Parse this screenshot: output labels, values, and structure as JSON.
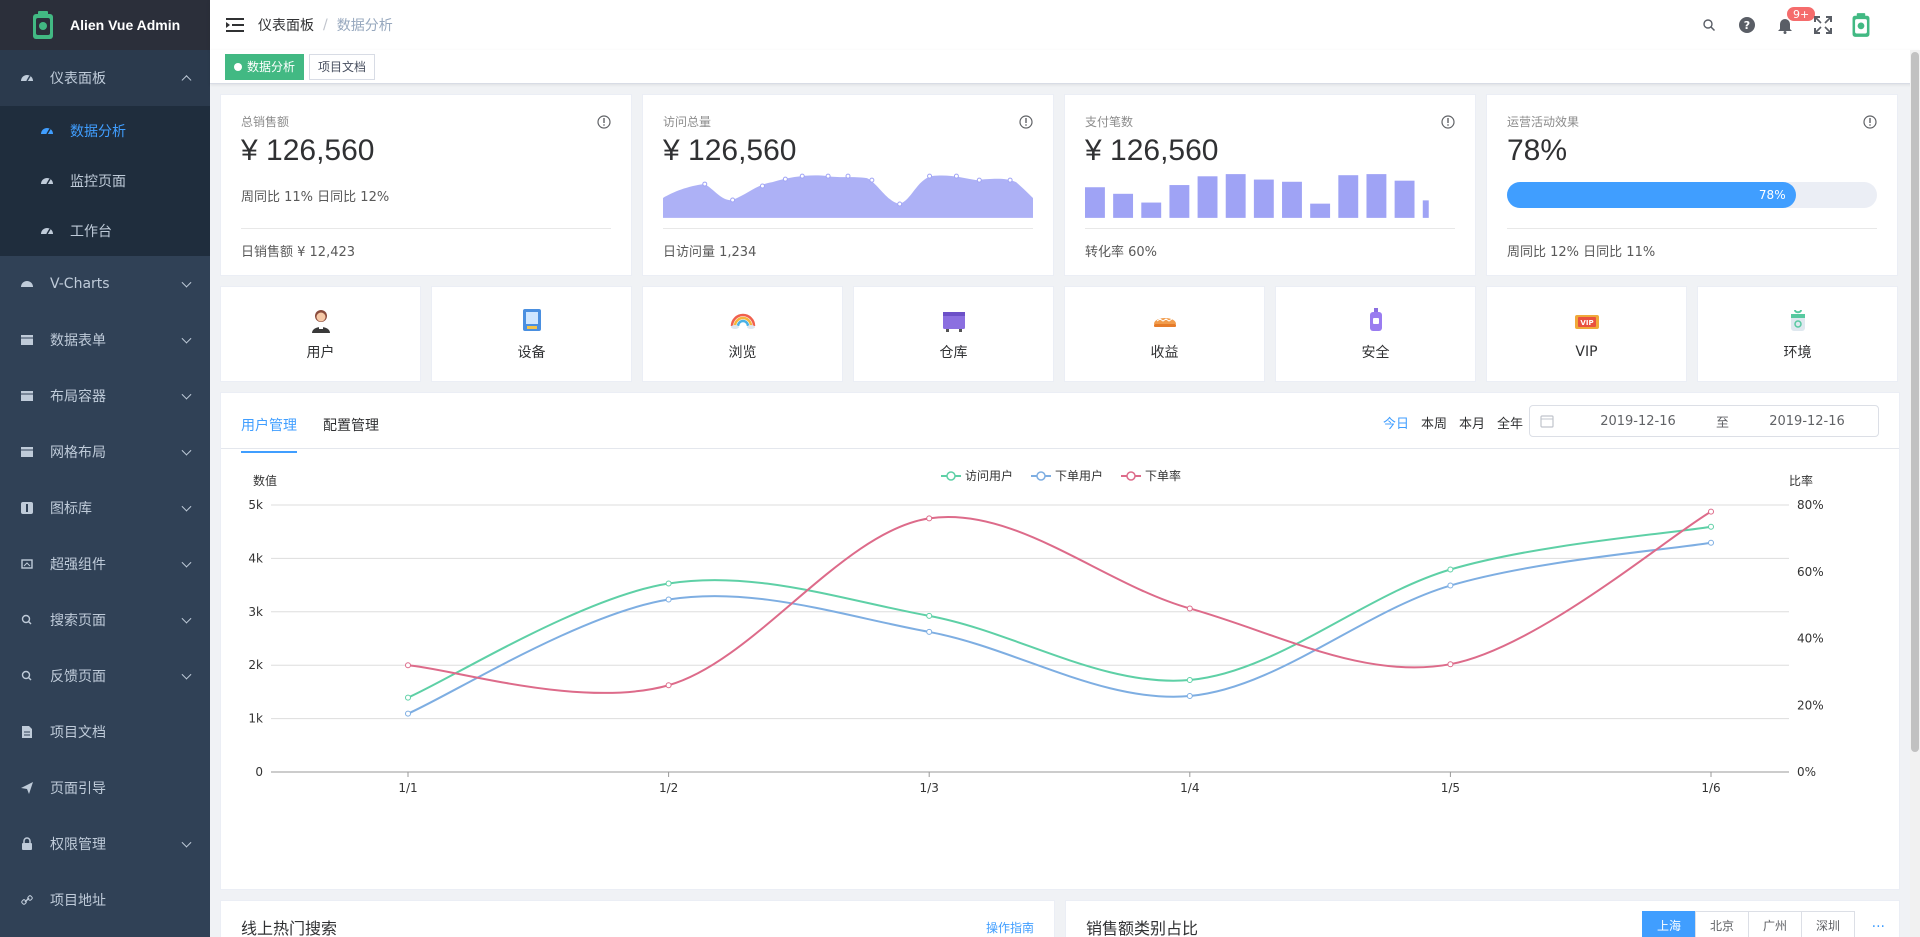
{
  "app": {
    "title": "Alien Vue Admin"
  },
  "sidebar": {
    "items": [
      {
        "label": "仪表面板",
        "open": true
      },
      {
        "label": "V-Charts"
      },
      {
        "label": "数据表单"
      },
      {
        "label": "布局容器"
      },
      {
        "label": "网格布局"
      },
      {
        "label": "图标库"
      },
      {
        "label": "超强组件"
      },
      {
        "label": "搜索页面"
      },
      {
        "label": "反馈页面"
      },
      {
        "label": "项目文档"
      },
      {
        "label": "页面引导"
      },
      {
        "label": "权限管理"
      },
      {
        "label": "项目地址"
      }
    ],
    "subitems": [
      {
        "label": "数据分析",
        "active": true
      },
      {
        "label": "监控页面"
      },
      {
        "label": "工作台"
      }
    ]
  },
  "header": {
    "breadcrumb": [
      "仪表面板",
      "/",
      "数据分析"
    ],
    "badge": "9+"
  },
  "tags": [
    "数据分析",
    "项目文档"
  ],
  "stats": [
    {
      "title": "总销售额",
      "value": "¥ 126,560",
      "mid": "周同比 11%  日同比 12%",
      "foot": "日销售额 ¥ 12,423"
    },
    {
      "title": "访问总量",
      "value": "¥ 126,560",
      "foot": "日访问量 1,234"
    },
    {
      "title": "支付笔数",
      "value": "¥ 126,560",
      "foot": "转化率 60%"
    },
    {
      "title": "运营活动效果",
      "value": "78%",
      "progress": 78,
      "progress_label": "78%",
      "foot": "周同比 12%  日同比 11%"
    }
  ],
  "quick_links": [
    "用户",
    "设备",
    "浏览",
    "仓库",
    "收益",
    "安全",
    "VIP",
    "环境"
  ],
  "panel": {
    "tabs": [
      "用户管理",
      "配置管理"
    ],
    "ranges": [
      "今日",
      "本周",
      "本月",
      "全年"
    ],
    "date_start": "2019-12-16",
    "date_sep": "至",
    "date_end": "2019-12-16"
  },
  "chart_data": {
    "type": "line",
    "x": [
      "1/1",
      "1/2",
      "1/3",
      "1/4",
      "1/5",
      "1/6"
    ],
    "ylabel_left": "数值",
    "ylabel_right": "比率",
    "yticks_left": [
      "0",
      "1k",
      "2k",
      "3k",
      "4k",
      "5k"
    ],
    "yticks_right": [
      "0%",
      "20%",
      "40%",
      "60%",
      "80%"
    ],
    "ylim_left": [
      0,
      5000
    ],
    "ylim_right": [
      0,
      0.8
    ],
    "series": [
      {
        "name": "访问用户",
        "axis": "left",
        "color": "#5ed0a6",
        "values": [
          1393,
          3530,
          2923,
          1723,
          3792,
          4593
        ]
      },
      {
        "name": "下单用户",
        "axis": "left",
        "color": "#7eaee2",
        "values": [
          1093,
          3230,
          2623,
          1423,
          3492,
          4293
        ]
      },
      {
        "name": "下单率",
        "axis": "right",
        "color": "#dd6b8a",
        "values": [
          0.32,
          0.26,
          0.76,
          0.49,
          0.323,
          0.78
        ]
      }
    ],
    "legend_position": "top-center",
    "grid": true
  },
  "bottom": {
    "left_title": "线上热门搜索",
    "left_link": "操作指南",
    "right_title": "销售额类别占比",
    "cities": [
      "上海",
      "北京",
      "广州",
      "深圳"
    ],
    "more": "..."
  },
  "mini_bars": [
    28,
    22,
    14,
    30,
    38,
    40,
    35,
    33,
    13,
    39,
    40,
    34,
    16
  ]
}
